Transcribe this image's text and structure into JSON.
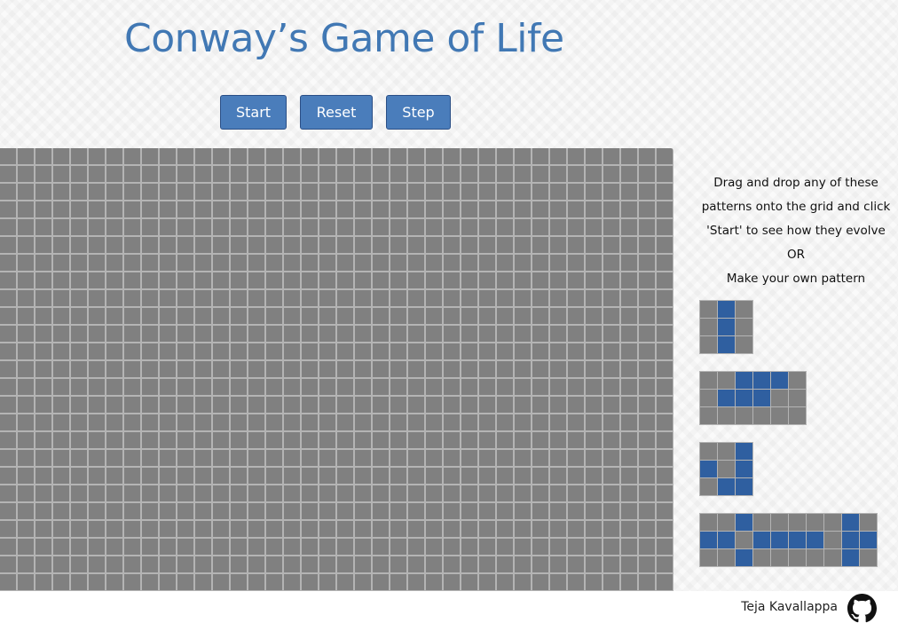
{
  "header": {
    "title": "Conway’s Game of Life"
  },
  "controls": {
    "start_label": "Start",
    "reset_label": "Reset",
    "step_label": "Step"
  },
  "instructions": {
    "line1": "Drag and drop any of these",
    "line2": "patterns onto the grid and click",
    "line3": "'Start' to see how they evolve",
    "line4": "OR",
    "line5": "Make your own pattern"
  },
  "patterns": [
    {
      "rows": [
        "010",
        "010",
        "010"
      ]
    },
    {
      "rows": [
        "001110",
        "011100",
        "000000"
      ]
    },
    {
      "rows": [
        "001",
        "101",
        "011"
      ]
    },
    {
      "rows": [
        "0010000010",
        "1101111011",
        "0010000010"
      ]
    }
  ],
  "colors": {
    "title": "#4178b4",
    "button": "#4a7dbb",
    "dead_cell": "#808080",
    "alive_cell": "#2f5fa0",
    "grid_line": "#b4b4b4"
  },
  "footer": {
    "author": "Teja Kavallappa",
    "icon": "github-icon"
  }
}
